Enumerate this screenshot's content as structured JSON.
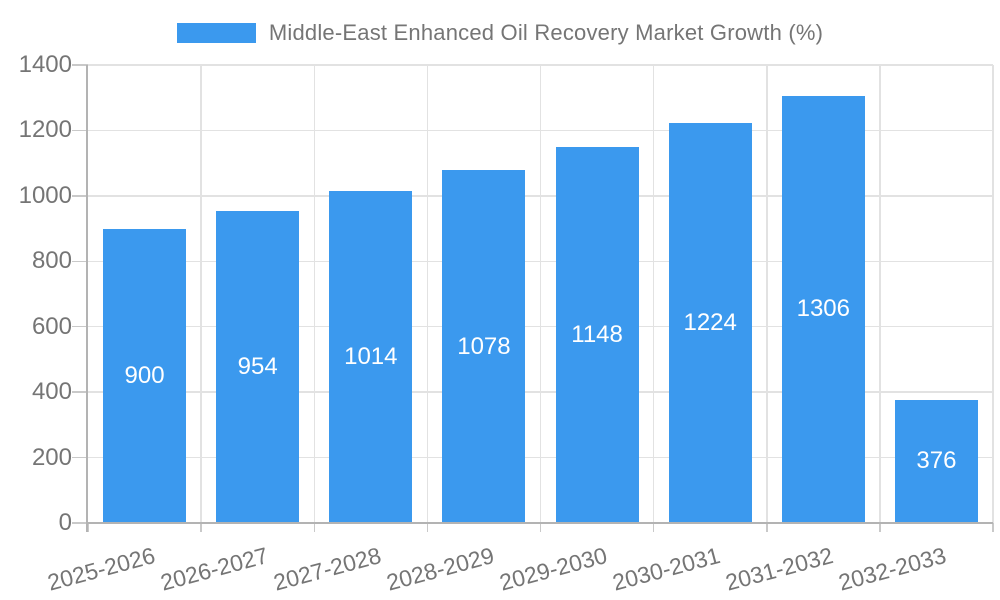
{
  "legend": {
    "label": "Middle-East Enhanced Oil Recovery Market Growth (%)"
  },
  "chart_data": {
    "type": "bar",
    "title": "Middle-East Enhanced Oil Recovery Market Growth (%)",
    "categories": [
      "2025-2026",
      "2026-2027",
      "2027-2028",
      "2028-2029",
      "2029-2030",
      "2030-2031",
      "2031-2032",
      "2032-2033"
    ],
    "values": [
      900,
      954,
      1014,
      1078,
      1148,
      1224,
      1306,
      376
    ],
    "series": [
      {
        "name": "Middle-East Enhanced Oil Recovery Market Growth (%)",
        "values": [
          900,
          954,
          1014,
          1078,
          1148,
          1224,
          1306,
          376
        ]
      }
    ],
    "xlabel": "",
    "ylabel": "",
    "ylim": [
      0,
      1400
    ],
    "yticks": [
      0,
      200,
      400,
      600,
      800,
      1000,
      1200,
      1400
    ],
    "grid": true,
    "value_labels_inside_bars": true,
    "legend_position": "top",
    "xtick_rotation_deg": -15,
    "colors": {
      "bar": "#3B99EE",
      "value_label": "#FFFFFF",
      "axis_text": "#757575",
      "gridline": "#E2E2E2",
      "tick": "#C9C9C9",
      "axis_line": "#B3B3B3",
      "background": "#FFFFFF"
    }
  }
}
